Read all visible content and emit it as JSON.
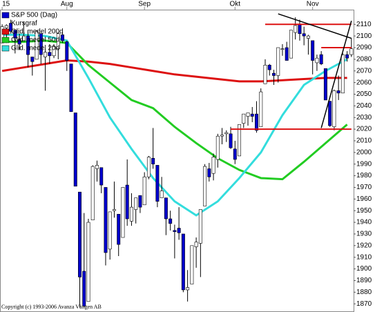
{
  "chart_data": {
    "type": "candlestick",
    "name": "S&P 500 (Dag)",
    "legend_subtitle": "Kursgraf",
    "footer": "Copyright (c) 1993-2006 Avanza Vängen AB",
    "color_down": "#0000cc",
    "color_up": "#ffffff",
    "open": [
      2094,
      2107,
      2111,
      2105,
      2097,
      2096,
      2100,
      2082,
      2080,
      2102,
      2082,
      2086,
      2083,
      2089,
      2101,
      2095,
      2076,
      2034,
      1966,
      1898,
      1872,
      1942,
      1986,
      1987,
      1970,
      1917,
      1950,
      1947,
      1927,
      1972,
      1941,
      1951,
      1963,
      1955,
      1979,
      1995,
      1989,
      1961,
      1961,
      1943,
      1933,
      1935,
      1930,
      1882,
      1887,
      1919,
      1922,
      1954,
      1986,
      1982,
      1994,
      2014,
      2016,
      2016,
      2003,
      1997,
      2025,
      2031,
      2033,
      2033,
      2022,
      2059,
      2075,
      2068,
      2066,
      2089,
      2090,
      2081,
      2103,
      2110,
      2102,
      2098,
      2096,
      2077,
      2084,
      2072,
      2044,
      2022,
      2053,
      2051,
      2084,
      2084
    ],
    "high": [
      2110,
      2110,
      2114,
      2105,
      2102,
      2112,
      2104,
      2082,
      2105,
      2102,
      2089,
      2093,
      2093,
      2103,
      2103,
      2096,
      2076,
      2034,
      1966,
      1948,
      1943,
      1989,
      1993,
      1987,
      1970,
      1949,
      1975,
      1947,
      1970,
      1994,
      1965,
      1961,
      1963,
      1983,
      1997,
      2021,
      1989,
      1979,
      1961,
      1950,
      1938,
      1953,
      1930,
      1899,
      1920,
      1927,
      1951,
      1990,
      1991,
      1999,
      2016,
      2021,
      2019,
      2022,
      2010,
      2024,
      2033,
      2034,
      2039,
      2044,
      2055,
      2080,
      2076,
      2071,
      2090,
      2093,
      2095,
      2105,
      2116,
      2114,
      2108,
      2101,
      2096,
      2084,
      2087,
      2072,
      2044,
      2054,
      2066,
      2085,
      2087,
      2098
    ],
    "low": [
      2094,
      2094,
      2102,
      2085,
      2088,
      2096,
      2073,
      2066,
      2080,
      2076,
      2053,
      2076,
      2081,
      2080,
      2094,
      2070,
      2035,
      1971,
      1867,
      1867,
      1872,
      1942,
      1975,
      1965,
      1903,
      1908,
      1944,
      1911,
      1927,
      1937,
      1937,
      1939,
      1948,
      1955,
      1977,
      1986,
      1953,
      1961,
      1929,
      1933,
      1909,
      1925,
      1880,
      1872,
      1887,
      1901,
      1893,
      1954,
      1975,
      1976,
      1987,
      2007,
      2009,
      2003,
      1990,
      1997,
      2021,
      2023,
      2026,
      2017,
      2022,
      2059,
      2066,
      2058,
      2060,
      2083,
      2079,
      2081,
      2097,
      2096,
      2092,
      2084,
      2067,
      2070,
      2075,
      2045,
      2022,
      2019,
      2045,
      2051,
      2078,
      2082
    ],
    "close": [
      2108,
      2109,
      2104,
      2098,
      2093,
      2100,
      2084,
      2078,
      2104,
      2084,
      2086,
      2083,
      2091,
      2102,
      2096,
      2079,
      2035,
      1971,
      1893,
      1868,
      1940,
      1988,
      1989,
      1972,
      1914,
      1949,
      1951,
      1921,
      1970,
      1943,
      1953,
      1961,
      1953,
      1979,
      1996,
      1990,
      1958,
      1967,
      1943,
      1939,
      1932,
      1931,
      1882,
      1884,
      1920,
      1923,
      1951,
      1988,
      1979,
      1996,
      2014,
      2015,
      2017,
      2004,
      1994,
      2024,
      2033,
      2034,
      2031,
      2019,
      2052,
      2075,
      2071,
      2066,
      2090,
      2089,
      2079,
      2105,
      2109,
      2102,
      2100,
      2100,
      2079,
      2081,
      2076,
      2045,
      2023,
      2053,
      2051,
      2084,
      2081,
      2089
    ],
    "series": [
      {
        "name": "Glid. medel 200d",
        "color": "#dd1111",
        "x": [
          0,
          5,
          10,
          15,
          20,
          25,
          30,
          35,
          40,
          45,
          50,
          55,
          60,
          65,
          70,
          75,
          80
        ],
        "values": [
          2070,
          2073,
          2076,
          2079,
          2078,
          2076,
          2073,
          2070,
          2067,
          2065,
          2063,
          2061,
          2061,
          2062,
          2063,
          2064,
          2064
        ]
      },
      {
        "name": "Glid. medel 50d",
        "color": "#22cc22",
        "x": [
          0,
          5,
          10,
          15,
          20,
          25,
          30,
          35,
          40,
          45,
          50,
          55,
          60,
          65,
          70,
          75,
          80
        ],
        "values": [
          2095,
          2095,
          2096,
          2094,
          2075,
          2060,
          2045,
          2038,
          2022,
          2008,
          1995,
          1985,
          1978,
          1977,
          1992,
          2008,
          2024
        ]
      },
      {
        "name": "Glid. medel 20d",
        "color": "#33dddd",
        "x": [
          0,
          5,
          10,
          15,
          20,
          25,
          30,
          35,
          40,
          45,
          50,
          55,
          60,
          65,
          70,
          75,
          80
        ],
        "values": [
          2101,
          2101,
          2100,
          2096,
          2064,
          2030,
          2003,
          1978,
          1958,
          1946,
          1958,
          1978,
          2000,
          2032,
          2058,
          2070,
          2080
        ]
      }
    ],
    "levels": [
      {
        "value": 2110,
        "from": 61,
        "to": 81,
        "color": "#dd1111"
      },
      {
        "value": 2090,
        "from": 74,
        "to": 81,
        "color": "#dd1111"
      },
      {
        "value": 2020,
        "from": 53,
        "to": 81,
        "color": "#dd1111"
      }
    ],
    "trendlines": [
      {
        "x": [
          64,
          81
        ],
        "y": [
          2119,
          2098
        ]
      },
      {
        "x": [
          74,
          81
        ],
        "y": [
          2021,
          2113
        ]
      }
    ],
    "xlim": [
      -0.5,
      81.5
    ],
    "xticks": [
      {
        "value": 0,
        "label": "15"
      },
      {
        "value": 15,
        "label": "Aug"
      },
      {
        "value": 33,
        "label": "Sep"
      },
      {
        "value": 54,
        "label": "Okt"
      },
      {
        "value": 72,
        "label": "Nov"
      }
    ],
    "ylim": [
      1863,
      2122
    ],
    "yticks": [
      1870,
      1880,
      1890,
      1900,
      1910,
      1920,
      1930,
      1940,
      1950,
      1960,
      1970,
      1980,
      1990,
      2000,
      2010,
      2020,
      2030,
      2040,
      2050,
      2060,
      2070,
      2080,
      2090,
      2100,
      2110
    ]
  }
}
